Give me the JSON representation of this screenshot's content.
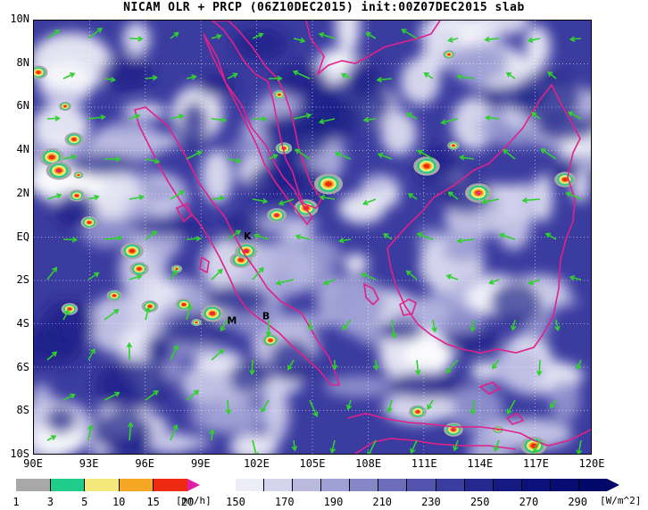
{
  "title": "NICAM OLR + PRCP (06Z10DEC2015) init:00Z07DEC2015 slab",
  "lat_labels": [
    "10N",
    "8N",
    "6N",
    "4N",
    "2N",
    "EQ",
    "2S",
    "4S",
    "6S",
    "8S",
    "10S"
  ],
  "lon_labels": [
    "90E",
    "93E",
    "96E",
    "99E",
    "102E",
    "105E",
    "108E",
    "111E",
    "114E",
    "117E",
    "120E"
  ],
  "extent": {
    "lon_min": 90,
    "lon_max": 120,
    "lat_min": -10,
    "lat_max": 10
  },
  "places": [
    {
      "label": "K",
      "lon": 101.3,
      "lat": -0.1
    },
    {
      "label": "M",
      "lon": 100.4,
      "lat": -4.0
    },
    {
      "label": "B",
      "lon": 102.3,
      "lat": -3.8
    }
  ],
  "prcp_legend": {
    "ticks": [
      "1",
      "3",
      "5",
      "10",
      "15",
      "20"
    ],
    "unit": "[mm/h]",
    "colors": [
      "#ffffff",
      "#a8a8a8",
      "#1fcc8a",
      "#f5e87a",
      "#f5a623",
      "#ee2a10",
      "#e11da4"
    ]
  },
  "olr_legend": {
    "ticks": [
      "150",
      "170",
      "190",
      "210",
      "230",
      "250",
      "270",
      "290"
    ],
    "unit": "[W/m^2]",
    "colors": [
      "#ffffff",
      "#ececf6",
      "#d4d4ec",
      "#babadf",
      "#9fa0d3",
      "#8586c6",
      "#6b6cba",
      "#5253ad",
      "#3b3ca0",
      "#262890",
      "#151a82",
      "#0a117a",
      "#060c72",
      "#02086a"
    ]
  },
  "colors": {
    "coastline": "#e0218a",
    "wind_vector": "#2ed12e",
    "grid": "#ffffff"
  }
}
